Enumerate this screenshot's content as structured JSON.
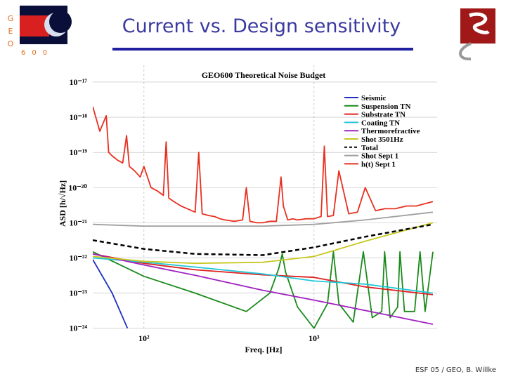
{
  "slide": {
    "title": "Current vs. Design sensitivity",
    "footer": "ESF 05 / GEO, B. Willke",
    "logo": {
      "vertical": "GEO",
      "horizontal": "600"
    }
  },
  "chart_data": {
    "type": "line",
    "title": "GEO600 Theoretical Noise Budget",
    "x_label": "Freq. [Hz]",
    "y_label": "ASD [h/√Hz]",
    "log_x": true,
    "log_y": true,
    "grid": true,
    "legend": "upper right",
    "xlim": [
      50,
      5000
    ],
    "ylim": [
      9e-25,
      3e-17
    ],
    "xticks": [
      {
        "value": 100,
        "label": "10²"
      },
      {
        "value": 1000,
        "label": "10³"
      }
    ],
    "yticks": [
      {
        "value": 1e-17,
        "label": "10⁻¹⁷"
      },
      {
        "value": 1e-18,
        "label": "10⁻¹⁸"
      },
      {
        "value": 1e-19,
        "label": "10⁻¹⁹"
      },
      {
        "value": 1e-20,
        "label": "10⁻²⁰"
      },
      {
        "value": 1e-21,
        "label": "10⁻²¹"
      },
      {
        "value": 1e-22,
        "label": "10⁻²²"
      },
      {
        "value": 1e-23,
        "label": "10⁻²³"
      },
      {
        "value": 1e-24,
        "label": "10⁻²⁴"
      }
    ],
    "series": [
      {
        "name": "Seismic",
        "color": "#1c2fc0",
        "x": [
          50,
          65,
          80
        ],
        "values": [
          9e-23,
          1e-23,
          1e-24
        ]
      },
      {
        "name": "Suspension TN",
        "color": "#1a8a1a",
        "x": [
          50,
          100,
          200,
          400,
          550,
          620,
          650,
          680,
          800,
          1000,
          1200,
          1300,
          1400,
          1700,
          1950,
          2200,
          2500,
          2600,
          2800,
          3100,
          3200,
          3400,
          3900,
          4200,
          4500,
          5000
        ],
        "values": [
          1.5e-22,
          3e-23,
          1e-23,
          3e-24,
          1e-23,
          5e-23,
          1.3e-22,
          4e-23,
          4e-24,
          1e-24,
          5e-24,
          1.5e-22,
          5e-24,
          1.5e-24,
          1.5e-22,
          2e-24,
          3e-24,
          1.5e-22,
          2e-24,
          4e-24,
          1.5e-22,
          3e-24,
          3e-24,
          1.5e-22,
          3e-24,
          1.5e-22
        ]
      },
      {
        "name": "Substrate TN",
        "color": "#e02020",
        "x": [
          50,
          100,
          200,
          500,
          1000,
          2000,
          5000
        ],
        "values": [
          1.3e-22,
          7e-23,
          4.6e-23,
          3.3e-23,
          2.8e-23,
          1.5e-23,
          9e-24
        ]
      },
      {
        "name": "Coating TN",
        "color": "#20c8d8",
        "x": [
          50,
          100,
          200,
          500,
          1000,
          2000,
          5000
        ],
        "values": [
          1e-22,
          7.6e-23,
          5.5e-23,
          3.5e-23,
          2.2e-23,
          1.8e-23,
          1e-23
        ]
      },
      {
        "name": "Thermorefractive",
        "color": "#a020c0",
        "x": [
          50,
          100,
          200,
          500,
          1000,
          2000,
          5000
        ],
        "values": [
          1.3e-22,
          6.3e-23,
          3.2e-23,
          1.2e-23,
          6.3e-24,
          3.2e-24,
          1.3e-24
        ]
      },
      {
        "name": "Shot 3501Hz",
        "color": "#c8c820",
        "x": [
          50,
          100,
          200,
          500,
          1000,
          2000,
          5000
        ],
        "values": [
          1.1e-22,
          8e-23,
          7e-23,
          7.5e-23,
          1.1e-22,
          3e-22,
          1e-21
        ]
      },
      {
        "name": "Total",
        "color": "#000000",
        "dashed": true,
        "x": [
          50,
          100,
          200,
          500,
          1000,
          2000,
          5000
        ],
        "values": [
          3.2e-22,
          1.8e-22,
          1.3e-22,
          1.2e-22,
          2e-22,
          4e-22,
          9e-22
        ]
      },
      {
        "name": "Shot Sept 1",
        "color": "#a0a0a0",
        "x": [
          50,
          100,
          200,
          500,
          1000,
          2000,
          5000
        ],
        "values": [
          9e-22,
          8e-22,
          8e-22,
          8e-22,
          9e-22,
          1.2e-21,
          2e-21
        ]
      },
      {
        "name": "h(t) Sept 1",
        "color": "#e83020",
        "x": [
          50,
          55,
          60,
          62,
          65,
          70,
          75,
          79,
          82,
          88,
          95,
          100,
          110,
          120,
          130,
          135,
          140,
          150,
          165,
          180,
          200,
          210,
          220,
          240,
          260,
          280,
          300,
          340,
          380,
          400,
          420,
          460,
          500,
          550,
          600,
          640,
          660,
          700,
          750,
          800,
          900,
          1000,
          1100,
          1150,
          1200,
          1300,
          1400,
          1600,
          1800,
          2000,
          2300,
          2600,
          3000,
          3500,
          4000,
          4500,
          5000
        ],
        "values": [
          2e-18,
          4e-19,
          1.1e-18,
          1e-19,
          8e-20,
          6e-20,
          5e-20,
          3e-19,
          4e-20,
          3e-20,
          2e-20,
          4e-20,
          1e-20,
          8e-21,
          6e-21,
          2e-19,
          5e-21,
          4e-21,
          3e-21,
          2.5e-21,
          2e-21,
          1e-19,
          1.8e-21,
          1.6e-21,
          1.5e-21,
          1.3e-21,
          1.2e-21,
          1.1e-21,
          1.2e-21,
          1e-20,
          1.1e-21,
          1e-21,
          1e-21,
          1.1e-21,
          1.1e-21,
          2e-20,
          3e-21,
          1.2e-21,
          1.3e-21,
          1.2e-21,
          1.3e-21,
          1.3e-21,
          1.5e-21,
          1.5e-19,
          1.5e-21,
          1.6e-21,
          3e-20,
          1.8e-21,
          2e-21,
          1e-20,
          2.2e-21,
          2.5e-21,
          2.5e-21,
          3e-21,
          3e-21,
          3.5e-21,
          4e-21
        ]
      }
    ]
  }
}
